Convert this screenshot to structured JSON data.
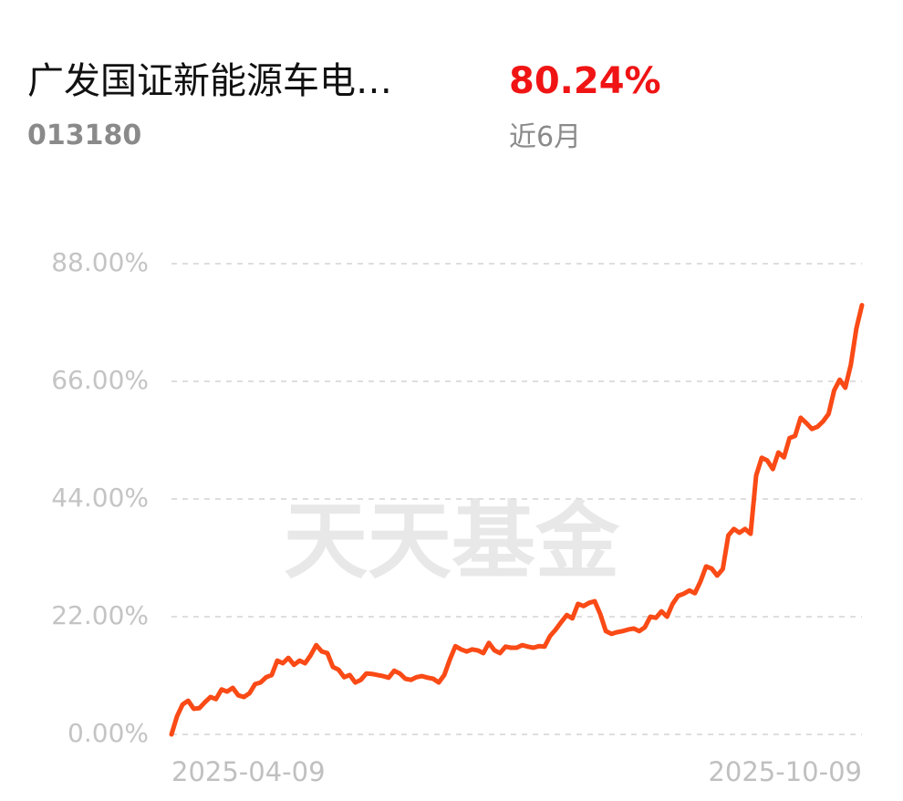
{
  "chart_data": {
    "type": "line",
    "title": "广发国证新能源车电…",
    "code": "013180",
    "return_label": "80.24%",
    "period": "近6月",
    "watermark": "天天基金",
    "color": "#fa4a16",
    "grid": true,
    "ylim": [
      0,
      88
    ],
    "yticks": [
      {
        "value": 0,
        "label": "0.00%"
      },
      {
        "value": 22,
        "label": "22.00%"
      },
      {
        "value": 44,
        "label": "44.00%"
      },
      {
        "value": 66,
        "label": "66.00%"
      },
      {
        "value": 88,
        "label": "88.00%"
      }
    ],
    "categories": [
      "2025-04-09",
      null,
      null,
      null,
      null,
      null,
      null,
      null,
      null,
      null,
      null,
      null,
      null,
      null,
      null,
      null,
      null,
      null,
      null,
      null,
      null,
      null,
      null,
      null,
      null,
      null,
      null,
      null,
      null,
      null,
      null,
      null,
      null,
      null,
      null,
      null,
      null,
      null,
      null,
      null,
      null,
      null,
      null,
      null,
      null,
      null,
      null,
      null,
      null,
      null,
      null,
      null,
      null,
      null,
      null,
      null,
      null,
      null,
      null,
      null,
      null,
      null,
      null,
      null,
      null,
      null,
      null,
      null,
      null,
      null,
      null,
      null,
      null,
      null,
      null,
      null,
      null,
      null,
      null,
      null,
      null,
      null,
      null,
      null,
      null,
      null,
      null,
      null,
      null,
      null,
      null,
      null,
      null,
      null,
      null,
      null,
      null,
      null,
      null,
      null,
      null,
      null,
      null,
      null,
      null,
      null,
      null,
      null,
      null,
      null,
      null,
      null,
      null,
      null,
      null,
      null,
      null,
      null,
      null,
      null,
      null,
      null,
      null,
      null,
      "2025-10-09"
    ],
    "values": [
      0,
      3.4,
      5.6,
      6.3,
      4.8,
      4.9,
      6.0,
      7.0,
      6.6,
      8.4,
      8.0,
      8.7,
      7.3,
      7.0,
      7.7,
      9.4,
      9.7,
      10.7,
      11.1,
      13.8,
      13.3,
      14.3,
      13.0,
      13.8,
      13.3,
      14.8,
      16.7,
      15.5,
      15.2,
      12.6,
      12.1,
      10.7,
      11.1,
      9.7,
      10.2,
      11.4,
      11.3,
      11.1,
      10.9,
      10.6,
      11.9,
      11.4,
      10.4,
      10.2,
      10.7,
      10.9,
      10.6,
      10.4,
      9.7,
      11.1,
      14.0,
      16.5,
      15.9,
      15.5,
      15.9,
      15.7,
      15.2,
      17.1,
      15.7,
      15.2,
      16.4,
      16.2,
      16.2,
      16.7,
      16.4,
      16.2,
      16.5,
      16.4,
      18.4,
      19.6,
      21.0,
      22.3,
      21.7,
      24.4,
      24.0,
      24.6,
      24.9,
      22.5,
      19.3,
      18.8,
      19.1,
      19.3,
      19.6,
      19.8,
      19.3,
      20.0,
      22.0,
      21.8,
      23.0,
      22.0,
      24.4,
      25.9,
      26.3,
      26.9,
      26.4,
      28.6,
      31.4,
      31.0,
      29.7,
      30.9,
      37.2,
      38.4,
      37.7,
      38.4,
      37.5,
      48.4,
      51.7,
      51.2,
      49.6,
      52.7,
      51.8,
      55.4,
      55.8,
      59.2,
      58.2,
      57.1,
      57.5,
      58.5,
      59.9,
      64.3,
      66.3,
      64.8,
      69.1,
      75.9,
      80.24
    ]
  }
}
